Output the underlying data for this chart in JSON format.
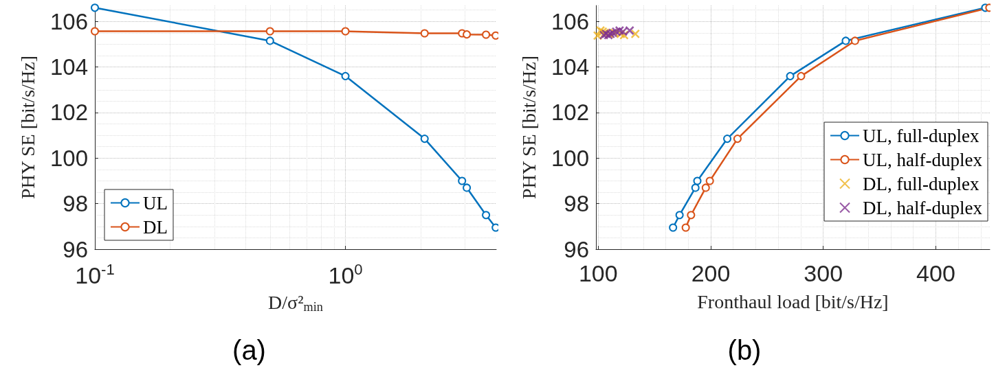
{
  "chart_data": [
    {
      "type": "line",
      "xlabel": "D/σ²$_{min}$",
      "ylabel": "PHY SE [bit/s/Hz]",
      "log": "x",
      "xlim": [
        0.1,
        4
      ],
      "xticks": [
        {
          "value": 0.1,
          "label": "10$^{-1}$"
        },
        {
          "value": 1,
          "label": "10$^{0}$"
        }
      ],
      "ylim": [
        96,
        106.7
      ],
      "yticks": [
        96,
        98,
        100,
        102,
        104,
        106
      ],
      "x": [
        0.1,
        0.5,
        1,
        2.07,
        2.92,
        3.05,
        3.64,
        3.98
      ],
      "series": [
        {
          "name": "UL",
          "color": "#0072bd",
          "values": [
            106.6,
            105.15,
            103.6,
            100.85,
            99.0,
            98.7,
            97.5,
            96.95
          ]
        },
        {
          "name": "DL",
          "color": "#d95319",
          "values": [
            105.57,
            105.57,
            105.57,
            105.48,
            105.48,
            105.43,
            105.42,
            105.38
          ]
        }
      ],
      "grid": true,
      "legend": "bottom left",
      "marker": "circle",
      "annotations": [
        "(a)"
      ]
    },
    {
      "type": "line",
      "xlabel": "Fronthaul load [bit/s/Hz]",
      "ylabel": "PHY SE [bit/s/Hz]",
      "xlim": [
        98,
        448
      ],
      "xticks": [
        100,
        200,
        300,
        400
      ],
      "ylim": [
        96,
        106.7
      ],
      "yticks": [
        96,
        98,
        100,
        102,
        104,
        106
      ],
      "series": [
        {
          "name": "UL, full-duplex",
          "color": "#0072bd",
          "marker": "circle",
          "x": [
            166.5,
            172.3,
            186.4,
            188.1,
            214.7,
            270.6,
            320,
            444
          ],
          "values": [
            96.95,
            97.5,
            98.7,
            99.0,
            100.85,
            103.6,
            105.15,
            106.6
          ]
        },
        {
          "name": "UL, half-duplex",
          "color": "#d95319",
          "marker": "circle",
          "x": [
            177.8,
            182.5,
            195.6,
            199.2,
            223.8,
            280.3,
            328.2,
            447.6
          ],
          "values": [
            96.95,
            97.5,
            98.7,
            99.0,
            100.85,
            103.6,
            105.15,
            106.6
          ]
        },
        {
          "name": "DL, full-duplex",
          "type": "scatter",
          "color": "#edb120",
          "marker": "cross",
          "x": [
            99.5,
            102,
            104,
            106,
            110,
            114.5,
            120,
            123,
            133
          ],
          "values": [
            105.38,
            105.6,
            105.55,
            105.5,
            105.45,
            105.5,
            105.45,
            105.4,
            105.45
          ]
        },
        {
          "name": "DL, half-duplex",
          "type": "scatter",
          "color": "#7e2f8e",
          "marker": "cross",
          "x": [
            105,
            107,
            109,
            111,
            113,
            116,
            119,
            122,
            128
          ],
          "values": [
            105.4,
            105.45,
            105.4,
            105.45,
            105.5,
            105.55,
            105.6,
            105.55,
            105.6
          ]
        }
      ],
      "grid": true,
      "legend": "right",
      "annotations": [
        "(b)"
      ]
    }
  ]
}
